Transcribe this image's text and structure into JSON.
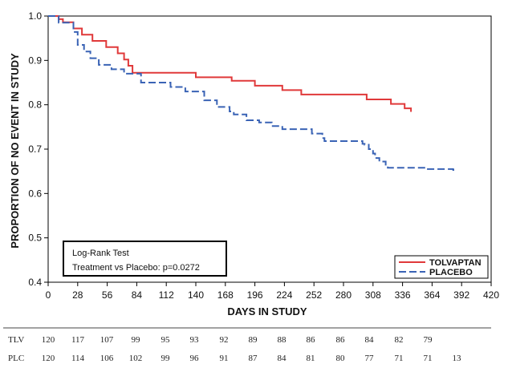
{
  "chart_data": {
    "type": "line",
    "title": "",
    "xlabel": "DAYS IN STUDY",
    "ylabel": "PROPORTION OF NO EVENT IN STUDY",
    "xlim": [
      0,
      420
    ],
    "ylim": [
      0.4,
      1.0
    ],
    "x_ticks": [
      0,
      28,
      56,
      84,
      112,
      140,
      168,
      196,
      224,
      252,
      280,
      308,
      336,
      364,
      392,
      420
    ],
    "y_ticks": [
      "0.4",
      "0.5",
      "0.6",
      "0.7",
      "0.8",
      "0.9",
      "1.0"
    ],
    "grid": false,
    "legend_position": "bottom-right",
    "series": [
      {
        "name": "TOLVAPTAN",
        "color": "#e0393a",
        "dash": "solid",
        "points": [
          [
            0,
            1.0
          ],
          [
            7,
            1.0
          ],
          [
            10,
            0.993
          ],
          [
            14,
            0.986
          ],
          [
            22,
            0.986
          ],
          [
            24,
            0.972
          ],
          [
            30,
            0.972
          ],
          [
            32,
            0.958
          ],
          [
            40,
            0.958
          ],
          [
            42,
            0.944
          ],
          [
            52,
            0.944
          ],
          [
            55,
            0.93
          ],
          [
            64,
            0.93
          ],
          [
            66,
            0.916
          ],
          [
            70,
            0.916
          ],
          [
            72,
            0.902
          ],
          [
            74,
            0.902
          ],
          [
            76,
            0.888
          ],
          [
            80,
            0.872
          ],
          [
            138,
            0.872
          ],
          [
            140,
            0.862
          ],
          [
            158,
            0.862
          ],
          [
            172,
            0.862
          ],
          [
            174,
            0.854
          ],
          [
            194,
            0.854
          ],
          [
            196,
            0.843
          ],
          [
            220,
            0.843
          ],
          [
            222,
            0.833
          ],
          [
            238,
            0.833
          ],
          [
            240,
            0.823
          ],
          [
            300,
            0.823
          ],
          [
            302,
            0.812
          ],
          [
            323,
            0.812
          ],
          [
            325,
            0.802
          ],
          [
            336,
            0.802
          ],
          [
            338,
            0.792
          ],
          [
            342,
            0.792
          ],
          [
            344,
            0.784
          ]
        ]
      },
      {
        "name": "PLACEBO",
        "color": "#3a63b5",
        "dash": "dashed",
        "points": [
          [
            0,
            1.0
          ],
          [
            8,
            1.0
          ],
          [
            10,
            0.985
          ],
          [
            22,
            0.985
          ],
          [
            24,
            0.964
          ],
          [
            28,
            0.935
          ],
          [
            34,
            0.92
          ],
          [
            40,
            0.905
          ],
          [
            48,
            0.89
          ],
          [
            60,
            0.88
          ],
          [
            72,
            0.87
          ],
          [
            88,
            0.85
          ],
          [
            116,
            0.84
          ],
          [
            130,
            0.83
          ],
          [
            148,
            0.81
          ],
          [
            160,
            0.795
          ],
          [
            172,
            0.785
          ],
          [
            176,
            0.778
          ],
          [
            188,
            0.765
          ],
          [
            200,
            0.76
          ],
          [
            212,
            0.752
          ],
          [
            222,
            0.745
          ],
          [
            248,
            0.745
          ],
          [
            250,
            0.735
          ],
          [
            260,
            0.725
          ],
          [
            262,
            0.718
          ],
          [
            276,
            0.718
          ],
          [
            290,
            0.718
          ],
          [
            296,
            0.718
          ],
          [
            298,
            0.712
          ],
          [
            300,
            0.71
          ],
          [
            304,
            0.7
          ],
          [
            308,
            0.69
          ],
          [
            310,
            0.68
          ],
          [
            314,
            0.672
          ],
          [
            320,
            0.665
          ],
          [
            322,
            0.658
          ],
          [
            326,
            0.658
          ],
          [
            336,
            0.658
          ],
          [
            360,
            0.655
          ],
          [
            384,
            0.653
          ],
          [
            386,
            0.65
          ]
        ]
      }
    ],
    "annotation": {
      "title": "Log-Rank Test",
      "text": "Treatment vs Placebo: p=0.0272"
    },
    "risk_table": {
      "rows": [
        {
          "label": "TLV",
          "values": [
            "120",
            "117",
            "107",
            "99",
            "95",
            "93",
            "92",
            "89",
            "88",
            "86",
            "86",
            "84",
            "82",
            "79"
          ]
        },
        {
          "label": "PLC",
          "values": [
            "120",
            "114",
            "106",
            "102",
            "99",
            "96",
            "91",
            "87",
            "84",
            "81",
            "80",
            "77",
            "71",
            "71",
            "13"
          ]
        }
      ]
    }
  }
}
